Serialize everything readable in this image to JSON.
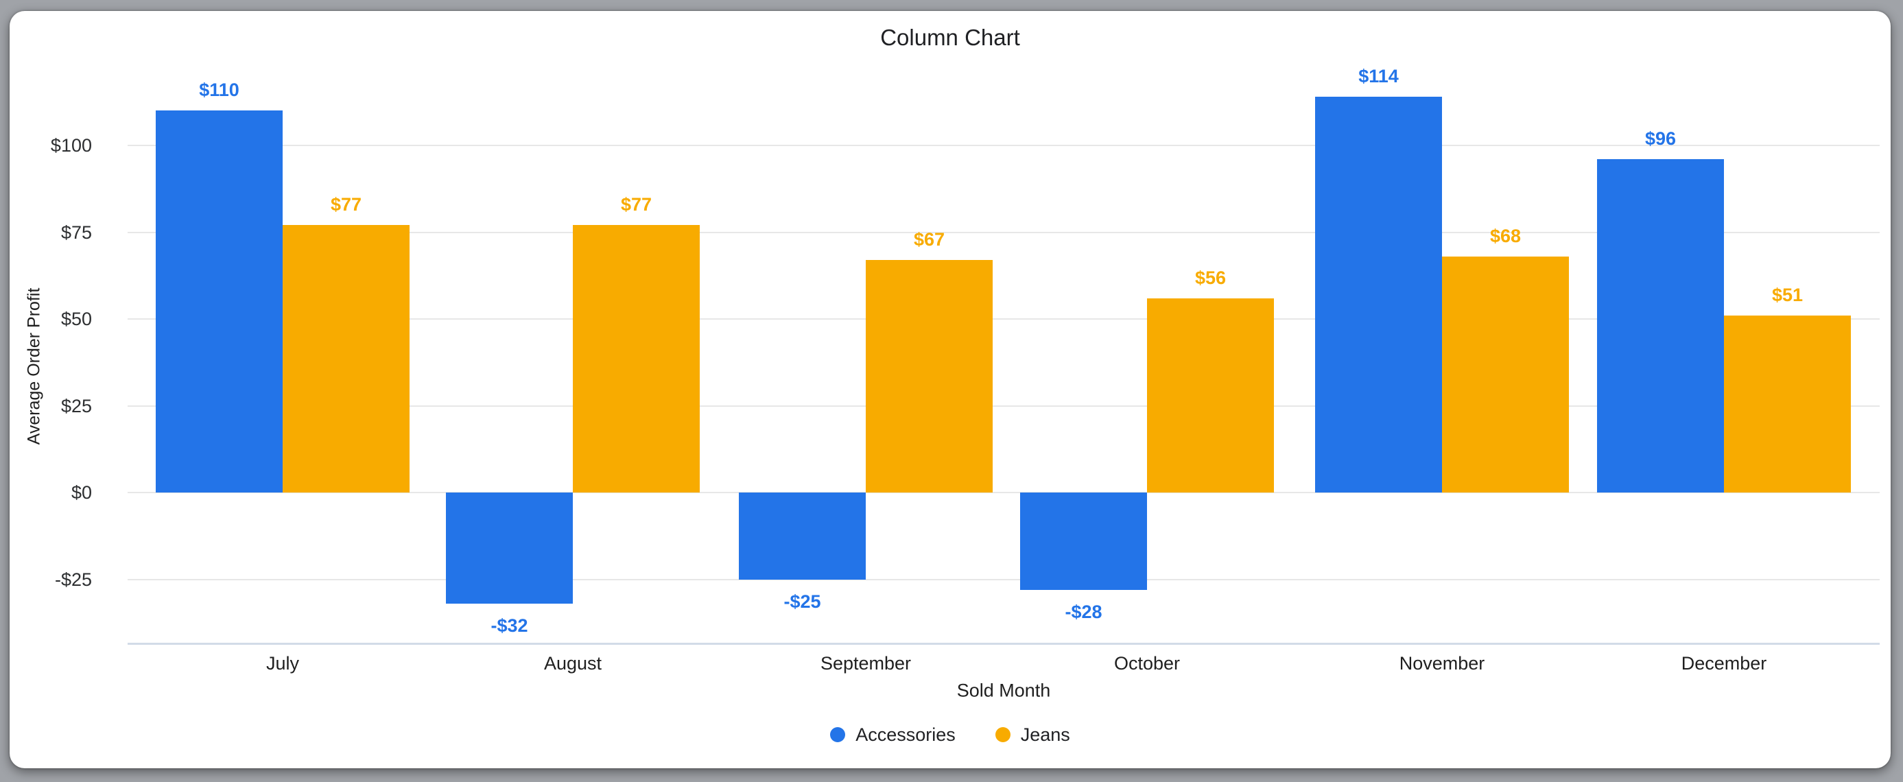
{
  "window": {
    "background_color": "#a0a3a8",
    "card_color": "#ffffff"
  },
  "chart_data": {
    "type": "bar",
    "title": "Column Chart",
    "xlabel": "Sold Month",
    "ylabel": "Average Order Profit",
    "categories": [
      "July",
      "August",
      "September",
      "October",
      "November",
      "December"
    ],
    "series": [
      {
        "name": "Accessories",
        "color": "#2374e8",
        "values": [
          110,
          -32,
          -25,
          -28,
          114,
          96
        ],
        "data_labels": [
          "$110",
          "-$32",
          "-$25",
          "-$28",
          "$114",
          "$96"
        ]
      },
      {
        "name": "Jeans",
        "color": "#f8ab00",
        "values": [
          77,
          77,
          67,
          56,
          68,
          51
        ],
        "data_labels": [
          "$77",
          "$77",
          "$67",
          "$56",
          "$68",
          "$51"
        ]
      }
    ],
    "y_axis": {
      "ticks": [
        {
          "value": 100,
          "label": "$100"
        },
        {
          "value": 75,
          "label": "$75"
        },
        {
          "value": 50,
          "label": "$50"
        },
        {
          "value": 25,
          "label": "$25"
        },
        {
          "value": 0,
          "label": "$0"
        },
        {
          "value": -25,
          "label": "-$25"
        }
      ],
      "range": [
        -44,
        118
      ]
    },
    "grid": true,
    "legend_position": "bottom",
    "styles": {
      "grid_color": "#e7e7e7",
      "baseline_color": "#d2dbe8",
      "axis_text_color": "#2d2f31",
      "label_text_color": "#1f1f1f",
      "title_color": "#202124"
    }
  }
}
